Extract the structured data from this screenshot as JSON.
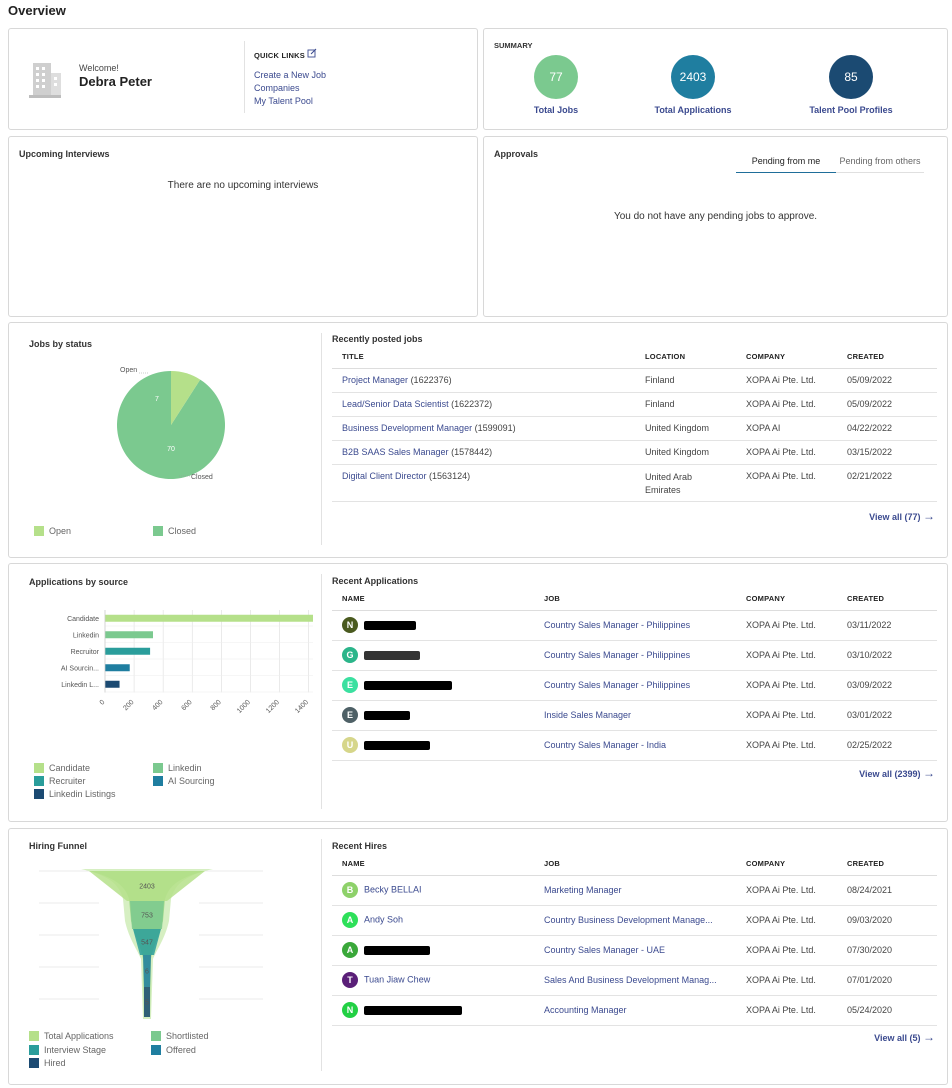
{
  "page_title": "Overview",
  "welcome": {
    "greeting": "Welcome!",
    "name": "Debra Peter",
    "quick_links_title": "QUICK LINKS",
    "links": [
      "Create a New Job",
      "Companies",
      "My Talent Pool"
    ]
  },
  "summary": {
    "title": "SUMMARY",
    "items": [
      {
        "value": "77",
        "label": "Total Jobs",
        "color": "#7bc98f"
      },
      {
        "value": "2403",
        "label": "Total Applications",
        "color": "#1f7ea0"
      },
      {
        "value": "85",
        "label": "Talent Pool Profiles",
        "color": "#1b4a72"
      }
    ]
  },
  "interviews": {
    "title": "Upcoming Interviews",
    "empty": "There are no upcoming interviews"
  },
  "approvals": {
    "title": "Approvals",
    "tabs": [
      "Pending from me",
      "Pending from others"
    ],
    "empty": "You do not have any pending jobs to approve."
  },
  "jobs_status": {
    "title": "Jobs by status",
    "legend": [
      "Open",
      "Closed"
    ],
    "colors": {
      "open": "#b5e08a",
      "closed": "#7bc98f"
    }
  },
  "chart_data": [
    {
      "type": "pie",
      "title": "Jobs by status",
      "labels": [
        "Open",
        "Closed"
      ],
      "values": [
        7,
        70
      ],
      "legend": "bottom"
    },
    {
      "type": "bar",
      "orientation": "horizontal",
      "title": "Applications by source",
      "categories": [
        "Candidate",
        "Linkedin",
        "Recruitor",
        "AI Sourcin...",
        "Linkedin L..."
      ],
      "values": [
        1430,
        330,
        310,
        170,
        100
      ],
      "xticks": [
        "0",
        "200",
        "400",
        "600",
        "800",
        "1000",
        "1200",
        "1400"
      ],
      "xlim": [
        0,
        1430
      ],
      "grid": true,
      "legend": "bottom"
    },
    {
      "type": "funnel",
      "title": "Hiring Funnel",
      "categories": [
        "Total Applications",
        "Shortlisted",
        "Interview Stage",
        "Offered",
        "Hired"
      ],
      "values": [
        2403,
        753,
        547,
        6,
        5
      ],
      "labels": [
        "2403",
        "753",
        "547",
        "6",
        "5"
      ],
      "legend": "bottom"
    }
  ],
  "recent_jobs": {
    "title": "Recently posted jobs",
    "headers": [
      "TITLE",
      "LOCATION",
      "COMPANY",
      "CREATED"
    ],
    "rows": [
      {
        "title": "Project Manager",
        "id": "(1622376)",
        "location": "Finland",
        "company": "XOPA Ai Pte. Ltd.",
        "created": "05/09/2022"
      },
      {
        "title": "Lead/Senior Data Scientist",
        "id": "(1622372)",
        "location": "Finland",
        "company": "XOPA Ai Pte. Ltd.",
        "created": "05/09/2022"
      },
      {
        "title": "Business Development Manager",
        "id": "(1599091)",
        "location": "United Kingdom",
        "company": "XOPA AI",
        "created": "04/22/2022"
      },
      {
        "title": "B2B SAAS Sales Manager",
        "id": "(1578442)",
        "location": "United Kingdom",
        "company": "XOPA Ai Pte. Ltd.",
        "created": "03/15/2022"
      },
      {
        "title": "Digital Client Director",
        "id": "(1563124)",
        "location": "United Arab Emirates",
        "company": "XOPA Ai Pte. Ltd.",
        "created": "02/21/2022"
      }
    ],
    "view_all": "View all (77)"
  },
  "apps_source": {
    "title": "Applications by source",
    "legend": [
      "Candidate",
      "Linkedin",
      "Recruiter",
      "AI Sourcing",
      "Linkedin Listings"
    ],
    "colors": [
      "#b5e08a",
      "#7bc98f",
      "#2a9d9b",
      "#1f7ea0",
      "#1b4a72"
    ]
  },
  "recent_apps": {
    "title": "Recent Applications",
    "headers": [
      "NAME",
      "JOB",
      "COMPANY",
      "CREATED"
    ],
    "rows": [
      {
        "initial": "N",
        "color": "#4a5a1f",
        "job": "Country Sales Manager - Philippines",
        "company": "XOPA Ai Pte. Ltd.",
        "created": "03/11/2022"
      },
      {
        "initial": "G",
        "color": "#2bb58a",
        "job": "Country Sales Manager - Philippines",
        "company": "XOPA Ai Pte. Ltd.",
        "created": "03/10/2022"
      },
      {
        "initial": "E",
        "color": "#3be0a0",
        "job": "Country Sales Manager - Philippines",
        "company": "XOPA Ai Pte. Ltd.",
        "created": "03/09/2022"
      },
      {
        "initial": "E",
        "color": "#4e6066",
        "job": "Inside Sales Manager",
        "company": "XOPA Ai Pte. Ltd.",
        "created": "03/01/2022"
      },
      {
        "initial": "U",
        "color": "#d6d68a",
        "job": "Country Sales Manager - India",
        "company": "XOPA Ai Pte. Ltd.",
        "created": "02/25/2022"
      }
    ],
    "view_all": "View all (2399)"
  },
  "funnel": {
    "title": "Hiring Funnel",
    "legend": [
      "Total Applications",
      "Shortlisted",
      "Interview Stage",
      "Offered",
      "Hired"
    ],
    "colors": [
      "#b5e08a",
      "#7bc98f",
      "#2a9d9b",
      "#1f7ea0",
      "#1b4a72"
    ]
  },
  "recent_hires": {
    "title": "Recent Hires",
    "headers": [
      "NAME",
      "JOB",
      "COMPANY",
      "CREATED"
    ],
    "rows": [
      {
        "initial": "B",
        "color": "#8ed16a",
        "name": "Becky BELLAI",
        "job": "Marketing Manager",
        "company": "XOPA Ai Pte. Ltd.",
        "created": "08/24/2021"
      },
      {
        "initial": "A",
        "color": "#2ee05a",
        "name": "Andy Soh",
        "job": "Country Business Development Manage...",
        "company": "XOPA Ai Pte. Ltd.",
        "created": "09/03/2020"
      },
      {
        "initial": "A",
        "color": "#3aa83a",
        "name": "",
        "job": "Country Sales Manager - UAE",
        "company": "XOPA Ai Pte. Ltd.",
        "created": "07/30/2020"
      },
      {
        "initial": "T",
        "color": "#5a1f78",
        "name": "Tuan Jiaw Chew",
        "job": "Sales And Business Development Manag...",
        "company": "XOPA Ai Pte. Ltd.",
        "created": "07/01/2020"
      },
      {
        "initial": "N",
        "color": "#22d044",
        "name": "",
        "job": "Accounting Manager",
        "company": "XOPA Ai Pte. Ltd.",
        "created": "05/24/2020"
      }
    ],
    "view_all": "View all (5)"
  }
}
